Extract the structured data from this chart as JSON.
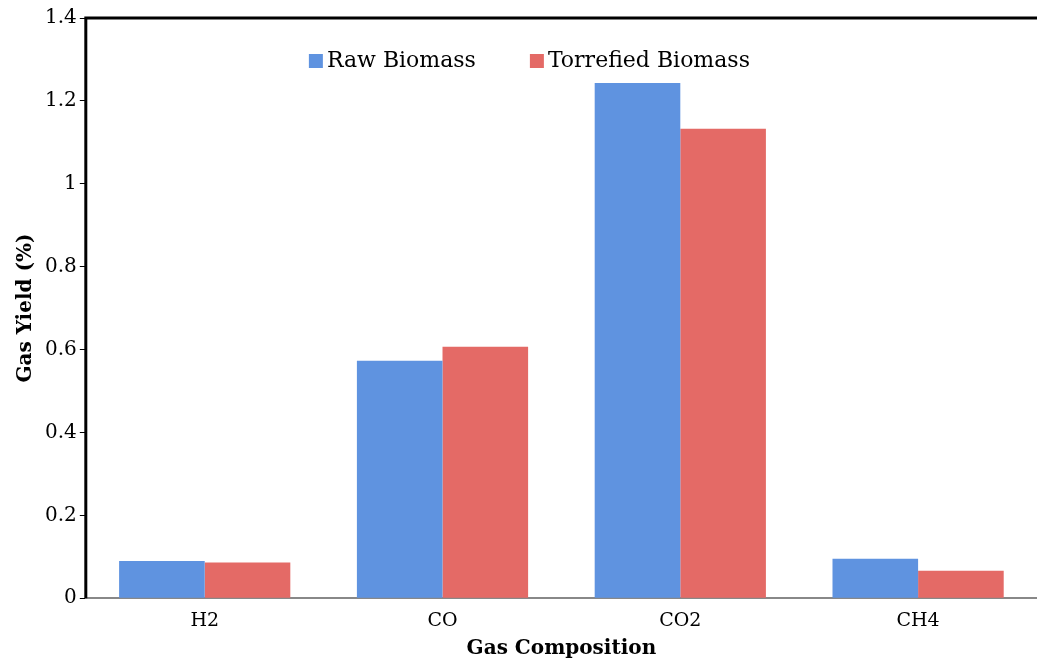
{
  "chart_data": {
    "type": "bar",
    "xlabel": "Gas Composition",
    "ylabel": "Gas Yield (%)",
    "categories": [
      "H2",
      "CO",
      "CO2",
      "CH4"
    ],
    "series": [
      {
        "name": "Raw Biomass",
        "color": "#5f93e0",
        "values": [
          0.09,
          0.573,
          1.243,
          0.095
        ]
      },
      {
        "name": "Torrefied Biomass",
        "color": "#e46a66",
        "values": [
          0.086,
          0.607,
          1.133,
          0.066
        ]
      }
    ],
    "ylim": [
      0,
      1.4
    ],
    "yticks": [
      0,
      0.2,
      0.4,
      0.6,
      0.8,
      1,
      1.2,
      1.4
    ],
    "grid": false,
    "legend": "top"
  }
}
